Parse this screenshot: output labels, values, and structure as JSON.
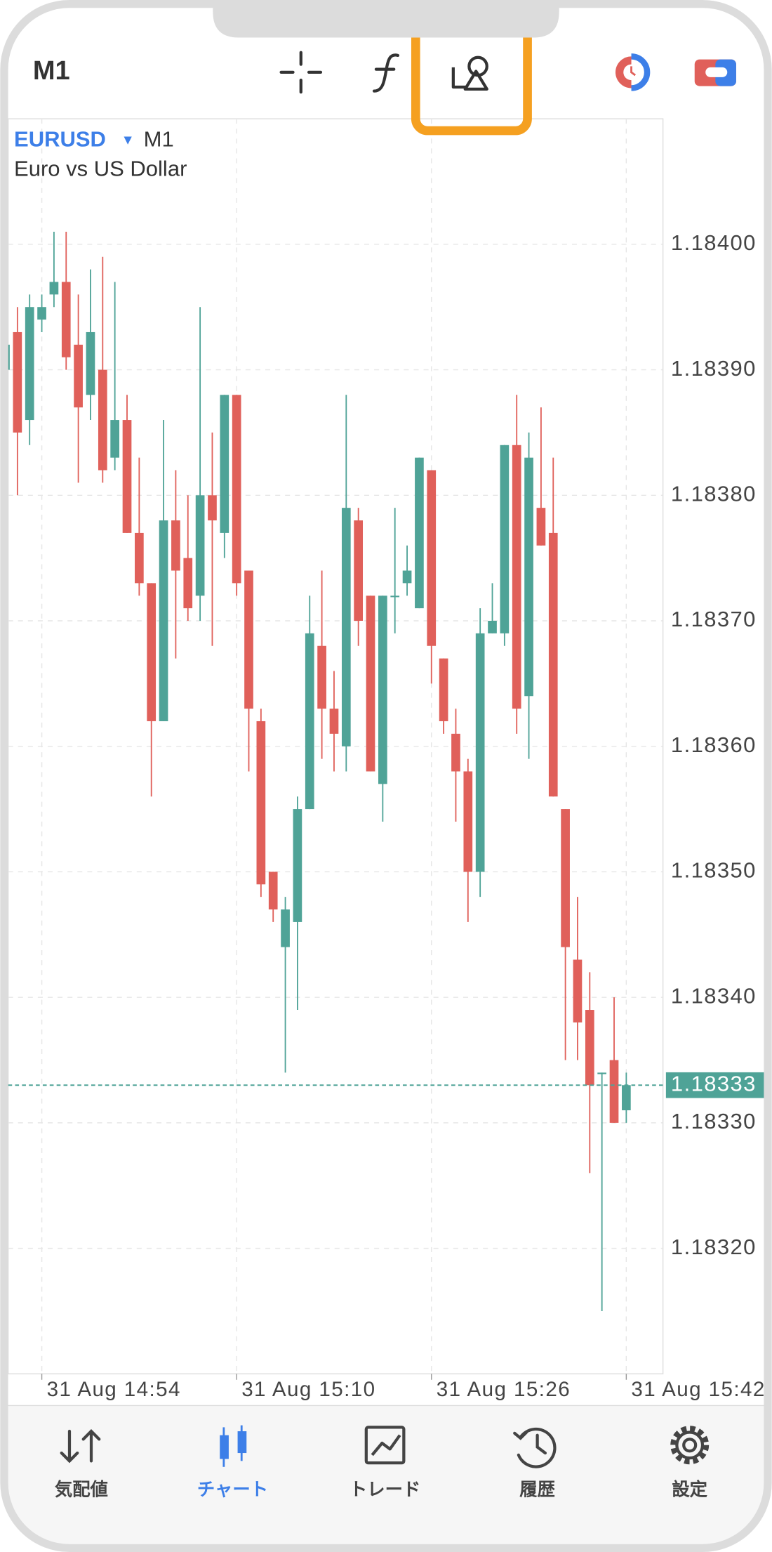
{
  "header": {
    "timeframe": "M1"
  },
  "chart_data": {
    "type": "candlestick",
    "symbol": "EURUSD",
    "timeframe": "M1",
    "subtitle": "Euro vs US Dollar",
    "x": [
      "31 Aug 14:51",
      "31 Aug 14:52",
      "31 Aug 14:53",
      "31 Aug 14:54",
      "31 Aug 14:55",
      "31 Aug 14:56",
      "31 Aug 14:57",
      "31 Aug 14:58",
      "31 Aug 14:59",
      "31 Aug 15:00",
      "31 Aug 15:01",
      "31 Aug 15:02",
      "31 Aug 15:03",
      "31 Aug 15:04",
      "31 Aug 15:05",
      "31 Aug 15:06",
      "31 Aug 15:07",
      "31 Aug 15:08",
      "31 Aug 15:09",
      "31 Aug 15:10",
      "31 Aug 15:11",
      "31 Aug 15:12",
      "31 Aug 15:13",
      "31 Aug 15:14",
      "31 Aug 15:15",
      "31 Aug 15:16",
      "31 Aug 15:17",
      "31 Aug 15:18",
      "31 Aug 15:19",
      "31 Aug 15:20",
      "31 Aug 15:21",
      "31 Aug 15:22",
      "31 Aug 15:23",
      "31 Aug 15:24",
      "31 Aug 15:25",
      "31 Aug 15:26",
      "31 Aug 15:27",
      "31 Aug 15:28",
      "31 Aug 15:29",
      "31 Aug 15:30",
      "31 Aug 15:31",
      "31 Aug 15:32",
      "31 Aug 15:33",
      "31 Aug 15:34",
      "31 Aug 15:35",
      "31 Aug 15:36",
      "31 Aug 15:37",
      "31 Aug 15:38",
      "31 Aug 15:39",
      "31 Aug 15:40",
      "31 Aug 15:41",
      "31 Aug 15:42"
    ],
    "open": [
      1.1839,
      1.18393,
      1.18386,
      1.18394,
      1.18396,
      1.18397,
      1.18392,
      1.18388,
      1.1839,
      1.18383,
      1.18386,
      1.18377,
      1.18373,
      1.18362,
      1.18378,
      1.18375,
      1.18372,
      1.1838,
      1.18377,
      1.18388,
      1.18374,
      1.18362,
      1.1835,
      1.18344,
      1.18346,
      1.18355,
      1.18368,
      1.18363,
      1.1836,
      1.18378,
      1.18372,
      1.18357,
      1.18372,
      1.18373,
      1.18371,
      1.18382,
      1.18367,
      1.18361,
      1.18358,
      1.1835,
      1.18369,
      1.18369,
      1.18384,
      1.18364,
      1.18379,
      1.18377,
      1.18355,
      1.18343,
      1.18339,
      1.18334,
      1.18335,
      1.18331
    ],
    "high": [
      1.18393,
      1.18395,
      1.18396,
      1.18396,
      1.18401,
      1.18401,
      1.18396,
      1.18398,
      1.18399,
      1.18397,
      1.18388,
      1.18383,
      1.18373,
      1.18386,
      1.18382,
      1.1838,
      1.18395,
      1.18385,
      1.18388,
      1.18388,
      1.18374,
      1.18363,
      1.1835,
      1.18348,
      1.18356,
      1.18372,
      1.18374,
      1.18366,
      1.18388,
      1.18379,
      1.18372,
      1.18372,
      1.18379,
      1.18376,
      1.18383,
      1.18382,
      1.18367,
      1.18363,
      1.18359,
      1.18371,
      1.18373,
      1.18384,
      1.18388,
      1.18385,
      1.18387,
      1.18383,
      1.18355,
      1.18348,
      1.18342,
      1.18334,
      1.1834,
      1.18334
    ],
    "low": [
      1.18389,
      1.1838,
      1.18384,
      1.18393,
      1.18395,
      1.1839,
      1.18381,
      1.18386,
      1.18381,
      1.18382,
      1.18377,
      1.18372,
      1.18356,
      1.18362,
      1.18367,
      1.1837,
      1.1837,
      1.18368,
      1.18375,
      1.18372,
      1.18358,
      1.18348,
      1.18346,
      1.18334,
      1.18339,
      1.18355,
      1.18359,
      1.18358,
      1.18358,
      1.18368,
      1.18358,
      1.18354,
      1.18369,
      1.18372,
      1.18371,
      1.18365,
      1.18361,
      1.18354,
      1.18346,
      1.18348,
      1.18369,
      1.18368,
      1.18361,
      1.18359,
      1.18376,
      1.18356,
      1.18335,
      1.18335,
      1.18326,
      1.18315,
      1.1833,
      1.1833
    ],
    "close": [
      1.18392,
      1.18385,
      1.18395,
      1.18395,
      1.18397,
      1.18391,
      1.18387,
      1.18393,
      1.18382,
      1.18386,
      1.18377,
      1.18373,
      1.18362,
      1.18378,
      1.18374,
      1.18371,
      1.1838,
      1.18378,
      1.18388,
      1.18373,
      1.18363,
      1.18349,
      1.18347,
      1.18347,
      1.18355,
      1.18369,
      1.18363,
      1.18361,
      1.18379,
      1.1837,
      1.18358,
      1.18372,
      1.18372,
      1.18374,
      1.18383,
      1.18368,
      1.18362,
      1.18358,
      1.1835,
      1.18369,
      1.1837,
      1.18384,
      1.18363,
      1.18383,
      1.18376,
      1.18356,
      1.18344,
      1.18338,
      1.18333,
      1.18334,
      1.1833,
      1.18333
    ],
    "up_color": "#4fa397",
    "down_color": "#e0605a",
    "ylim": [
      1.1831,
      1.1841
    ],
    "yticks": [
      {
        "value": 1.184,
        "label": "1.18400"
      },
      {
        "value": 1.1839,
        "label": "1.18390"
      },
      {
        "value": 1.1838,
        "label": "1.18380"
      },
      {
        "value": 1.1837,
        "label": "1.18370"
      },
      {
        "value": 1.1836,
        "label": "1.18360"
      },
      {
        "value": 1.1835,
        "label": "1.18350"
      },
      {
        "value": 1.1834,
        "label": "1.18340"
      },
      {
        "value": 1.1833,
        "label": "1.18330"
      },
      {
        "value": 1.1832,
        "label": "1.18320"
      }
    ],
    "xticks": [
      "31 Aug 14:54",
      "31 Aug 15:10",
      "31 Aug 15:26",
      "31 Aug 15:42"
    ],
    "current_price": 1.18333,
    "current_price_color": "#4fa397",
    "grid": true
  },
  "nav": {
    "items": [
      "気配値",
      "チャート",
      "トレード",
      "履歴",
      "設定"
    ],
    "active": 1
  }
}
